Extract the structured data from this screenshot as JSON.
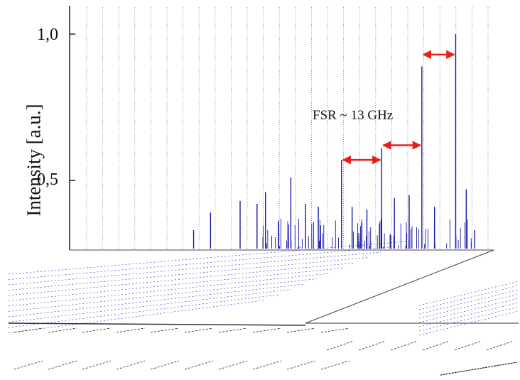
{
  "chart_data": {
    "type": "line",
    "ylabel": "Intensity [a.u.]",
    "y_tick_labels": [
      "1,0",
      "0,5"
    ],
    "y_ticks": [
      1.0,
      0.5
    ],
    "ylim": [
      0.25,
      1.1
    ],
    "line_color": "#1a1aa8",
    "annotation_color": "#e8201c",
    "annotation": "FSR ~ 13 GHz",
    "series": [
      {
        "peaks": [
          {
            "x": 0.29,
            "y": 0.33
          },
          {
            "x": 0.33,
            "y": 0.39
          },
          {
            "x": 0.4,
            "y": 0.43
          },
          {
            "x": 0.44,
            "y": 0.42
          },
          {
            "x": 0.46,
            "y": 0.46
          },
          {
            "x": 0.52,
            "y": 0.51
          },
          {
            "x": 0.555,
            "y": 0.42
          },
          {
            "x": 0.585,
            "y": 0.41
          },
          {
            "x": 0.64,
            "y": 0.57
          },
          {
            "x": 0.665,
            "y": 0.41
          },
          {
            "x": 0.7,
            "y": 0.4
          },
          {
            "x": 0.735,
            "y": 0.61
          },
          {
            "x": 0.765,
            "y": 0.44
          },
          {
            "x": 0.8,
            "y": 0.45
          },
          {
            "x": 0.83,
            "y": 0.89
          },
          {
            "x": 0.86,
            "y": 0.41
          },
          {
            "x": 0.91,
            "y": 1.0
          },
          {
            "x": 0.935,
            "y": 0.47
          },
          {
            "x": 0.955,
            "y": 0.33
          }
        ]
      }
    ],
    "fsr_arrows": [
      {
        "from_peak": 0.64,
        "to_peak": 0.735,
        "y": 0.57
      },
      {
        "from_peak": 0.735,
        "to_peak": 0.83,
        "y": 0.62
      },
      {
        "from_peak": 0.83,
        "to_peak": 0.91,
        "y": 0.93
      }
    ]
  }
}
